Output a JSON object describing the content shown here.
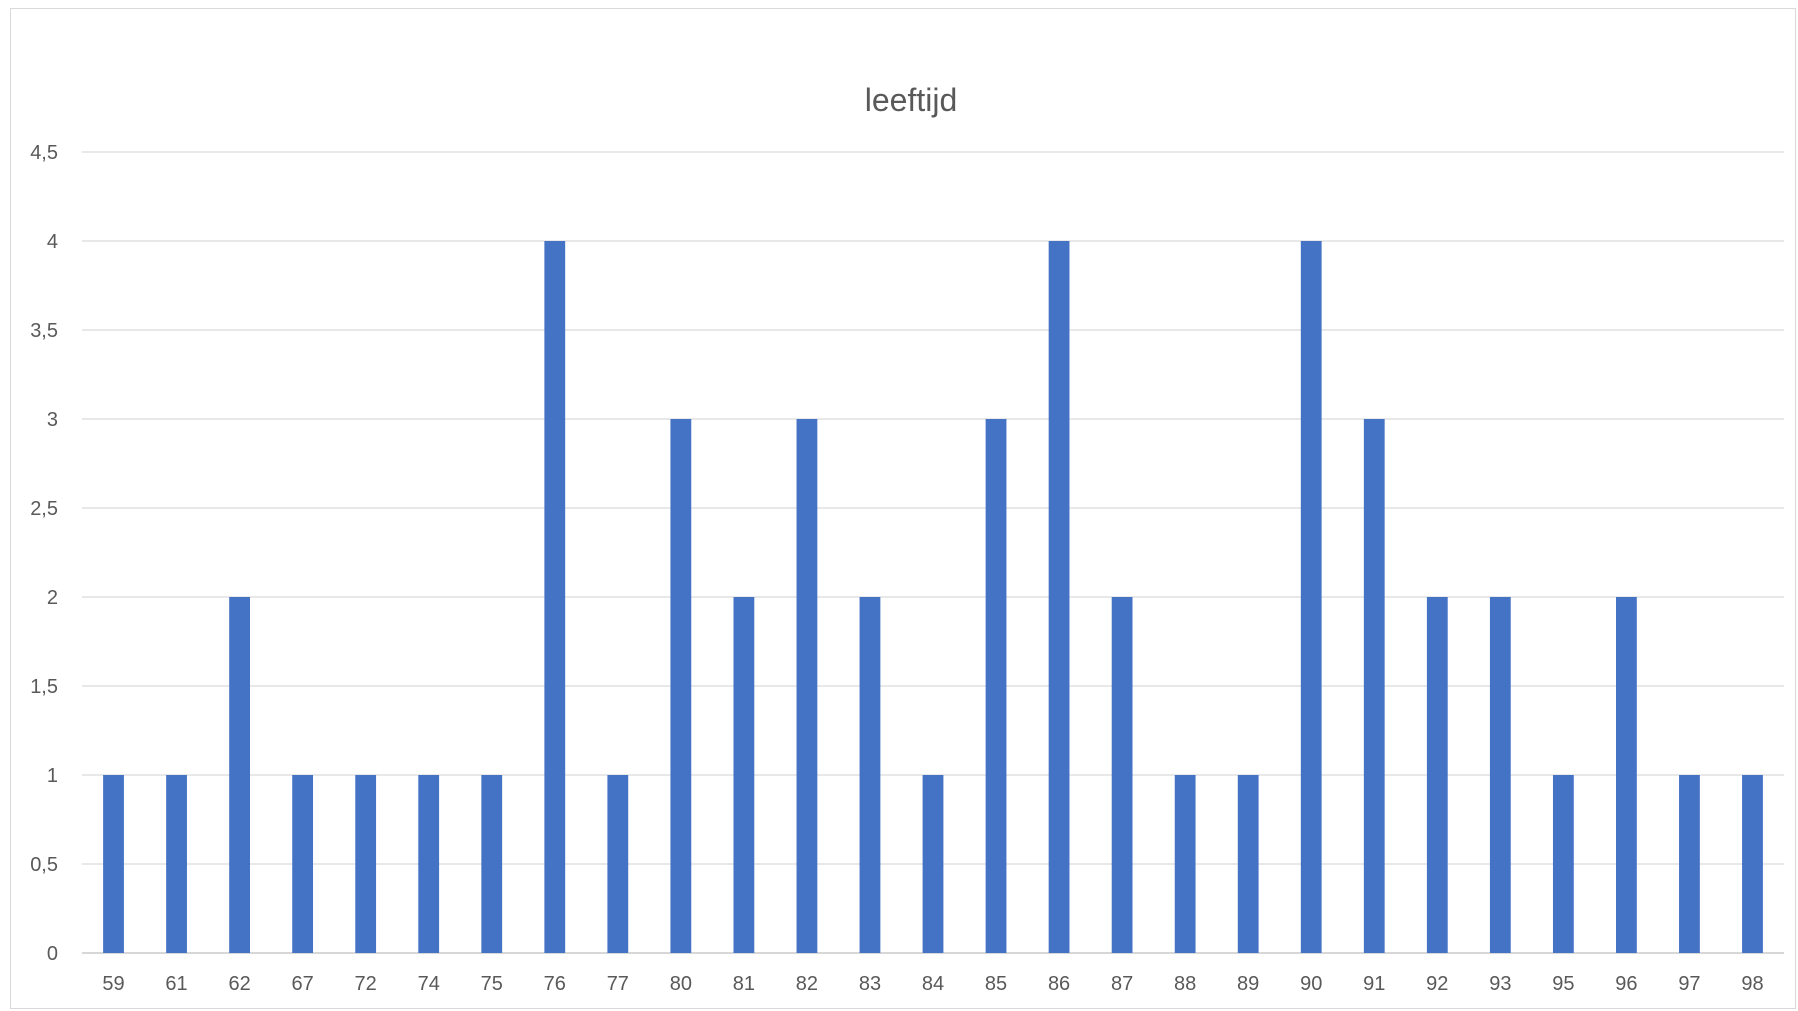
{
  "chart_data": {
    "type": "bar",
    "title": "leeftijd",
    "xlabel": "",
    "ylabel": "",
    "categories": [
      "59",
      "61",
      "62",
      "67",
      "72",
      "74",
      "75",
      "76",
      "77",
      "80",
      "81",
      "82",
      "83",
      "84",
      "85",
      "86",
      "87",
      "88",
      "89",
      "90",
      "91",
      "92",
      "93",
      "95",
      "96",
      "97",
      "98"
    ],
    "series": [
      {
        "values": [
          1,
          1,
          2,
          1,
          1,
          1,
          1,
          4,
          1,
          3,
          2,
          3,
          2,
          1,
          3,
          4,
          2,
          1,
          1,
          4,
          3,
          2,
          2,
          1,
          2,
          1,
          1
        ],
        "color": "#4472c4"
      }
    ],
    "ylim": [
      0,
      4.5
    ],
    "yticks": [
      0,
      0.5,
      1,
      1.5,
      2,
      2.5,
      3,
      3.5,
      4,
      4.5
    ],
    "ytick_labels": [
      "0",
      "0,5",
      "1",
      "1,5",
      "2",
      "2,5",
      "3",
      "3,5",
      "4",
      "4,5"
    ],
    "grid": true,
    "legend": "none",
    "colors": {
      "bar": "#4472c4",
      "gridline": "#d9d9d9",
      "text": "#595959"
    }
  }
}
